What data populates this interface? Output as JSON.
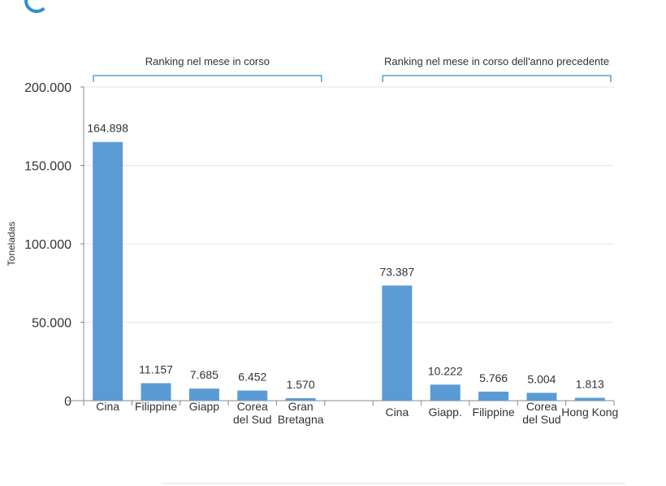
{
  "chart_data": {
    "type": "bar",
    "ylabel": "Toneladas",
    "ylim": [
      0,
      200000
    ],
    "yticks": [
      "0",
      "50.000",
      "100.000",
      "150.000",
      "200.000"
    ],
    "grid": true,
    "bar_color": "#5b9bd5",
    "groups": [
      {
        "label": "Ranking nel mese in corso",
        "categories": [
          "Cina",
          "Filippine",
          "Giapp",
          "Corea\ndel Sud",
          "Gran\nBretagna"
        ],
        "values": [
          164898,
          11157,
          7685,
          6452,
          1570
        ],
        "data_labels": [
          "164.898",
          "11.157",
          "7.685",
          "6.452",
          "1.570"
        ]
      },
      {
        "label": "Ranking nel mese in corso dell'anno precedente",
        "categories": [
          "Cina",
          "Giapp.",
          "Filippine",
          "Corea\ndel Sud",
          "Hong Kong"
        ],
        "values": [
          73387,
          10222,
          5766,
          5004,
          1813
        ],
        "data_labels": [
          "73.387",
          "10.222",
          "5.766",
          "5.004",
          "1.813"
        ]
      }
    ]
  }
}
